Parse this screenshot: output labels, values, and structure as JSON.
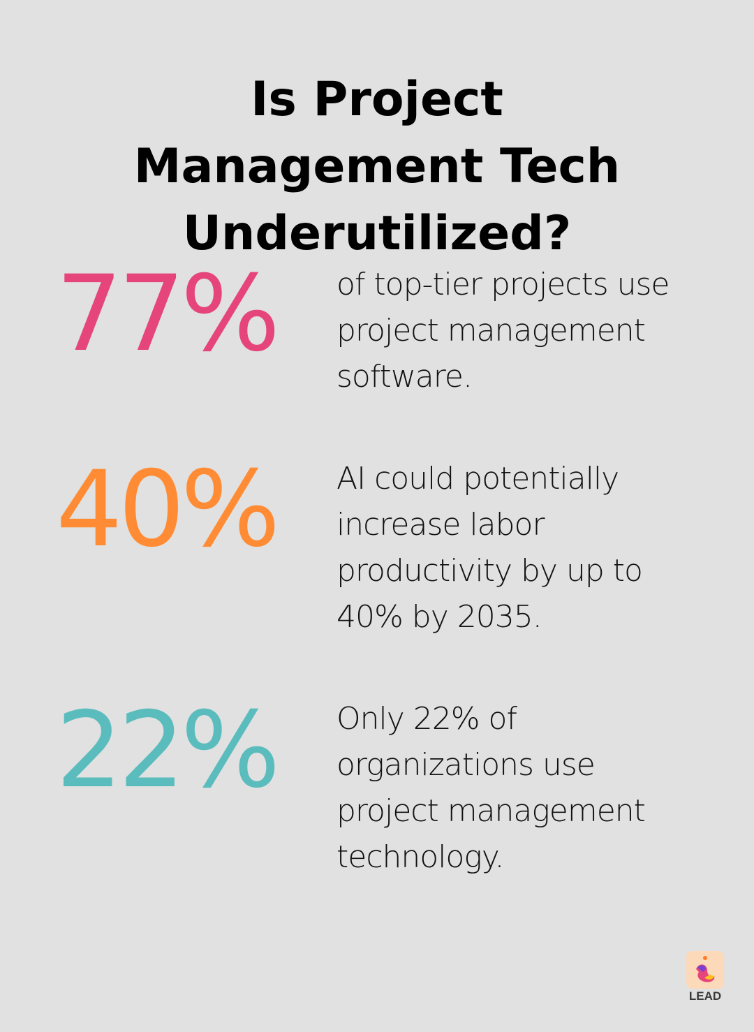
{
  "title": "Is Project Management Tech Underutilized?",
  "stats": [
    {
      "value": "77%",
      "color": "#e5457a",
      "text": "of top-tier projects use project management software."
    },
    {
      "value": "40%",
      "color": "#ff8c35",
      "text": "AI could potentially increase labor productivity by up to 40% by 2035."
    },
    {
      "value": "22%",
      "color": "#5bbcbd",
      "text": "Only 22% of organizations use project management technology."
    }
  ],
  "logo": {
    "text": "LEAD"
  }
}
